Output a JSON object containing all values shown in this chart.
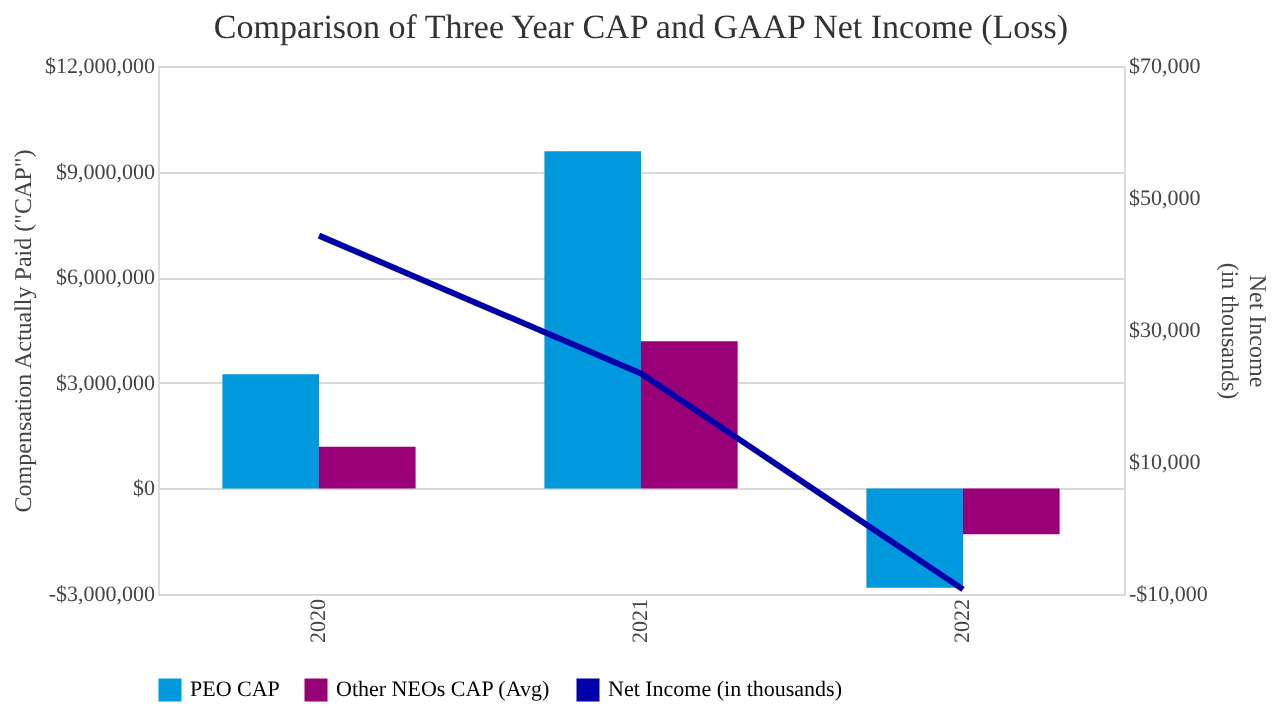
{
  "chart_data": {
    "type": "bar",
    "title": "Comparison of Three Year CAP and GAAP Net Income (Loss)",
    "categories": [
      "2020",
      "2021",
      "2022"
    ],
    "ylabel": "Compensation Actually Paid (\"CAP\")",
    "y2label": "Net Income\n(in thousands)",
    "series": [
      {
        "name": "PEO CAP",
        "color": "#0099dd",
        "values": [
          3240000,
          9580000,
          -2820000
        ]
      },
      {
        "name": "Other NEOs CAP (Avg)",
        "color": "#990077",
        "values": [
          1180000,
          4180000,
          -1300000
        ]
      },
      {
        "name": "Net Income (in thousands)",
        "type": "line",
        "axis": "y2",
        "color": "#0000aa",
        "values": [
          44300,
          23400,
          -9300
        ]
      }
    ],
    "ylim": [
      -3000000,
      12000000
    ],
    "yticks": [
      {
        "value": -3000000,
        "label": "-$3,000,000"
      },
      {
        "value": 0,
        "label": "$0"
      },
      {
        "value": 3000000,
        "label": "$3,000,000"
      },
      {
        "value": 6000000,
        "label": "$6,000,000"
      },
      {
        "value": 9000000,
        "label": "$9,000,000"
      },
      {
        "value": 12000000,
        "label": "$12,000,000"
      }
    ],
    "y2lim": [
      -10000,
      70000
    ],
    "y2ticks": [
      {
        "value": -10000,
        "label": "-$10,000"
      },
      {
        "value": 10000,
        "label": "$10,000"
      },
      {
        "value": 30000,
        "label": "$30,000"
      },
      {
        "value": 50000,
        "label": "$50,000"
      },
      {
        "value": 70000,
        "label": "$70,000"
      }
    ],
    "grid": "y",
    "legend": "bottom",
    "marker": "none"
  }
}
